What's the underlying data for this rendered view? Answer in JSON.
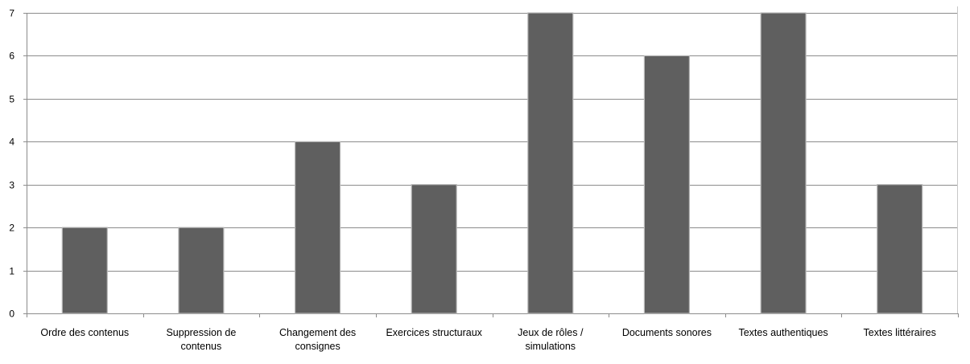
{
  "chart_data": {
    "type": "bar",
    "title": "",
    "xlabel": "",
    "ylabel": "",
    "categories": [
      [
        "Ordre des contenus"
      ],
      [
        "Suppression de",
        "contenus"
      ],
      [
        "Changement des",
        "consignes"
      ],
      [
        "Exercices structuraux"
      ],
      [
        "Jeux de rôles /",
        "simulations"
      ],
      [
        "Documents sonores"
      ],
      [
        "Textes authentiques"
      ],
      [
        "Textes littéraires"
      ]
    ],
    "values": [
      2,
      2,
      4,
      3,
      7,
      6,
      7,
      3
    ],
    "ylim": [
      0,
      7
    ],
    "yticks": [
      0,
      1,
      2,
      3,
      4,
      5,
      6,
      7
    ],
    "grid": true,
    "legend": "none",
    "colors": {
      "bar": "#5f5f5f",
      "bar_edge": "#b8b8b8",
      "grid": "#8c8c8c",
      "axis": "#8c8c8c"
    }
  }
}
